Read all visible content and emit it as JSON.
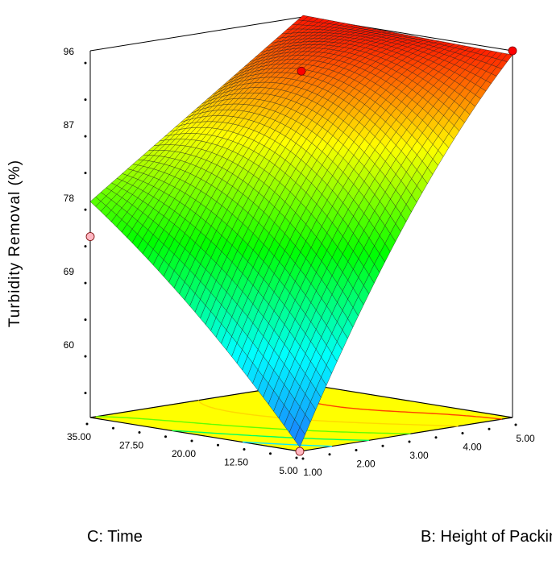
{
  "chart_data": {
    "type": "surface3d",
    "title": "",
    "zlabel": "Turbidity Removal (%)",
    "xlabel": "C: Time",
    "ylabel": "B: Height of Packing",
    "z_ticks": [
      "60",
      "69",
      "78",
      "87",
      "96"
    ],
    "x_ticks": [
      "5.00",
      "12.50",
      "20.00",
      "27.50",
      "35.00"
    ],
    "y_ticks": [
      "1.00",
      "2.00",
      "3.00",
      "4.00",
      "5.00"
    ],
    "xlim": [
      5,
      35
    ],
    "ylim": [
      1,
      5
    ],
    "zlim": [
      51,
      96
    ],
    "surface_corners": [
      {
        "time": 5,
        "height": 1,
        "removal": 51.5
      },
      {
        "time": 35,
        "height": 1,
        "removal": 77.5
      },
      {
        "time": 5,
        "height": 5,
        "removal": 95.5
      },
      {
        "time": 35,
        "height": 5,
        "removal": 96.2
      }
    ],
    "design_points": [
      {
        "time": 5,
        "height": 1,
        "removal": 51.0,
        "above_surface": false
      },
      {
        "time": 35,
        "height": 1,
        "removal": 73.2,
        "above_surface": false
      },
      {
        "time": 5,
        "height": 5,
        "removal": 96.0,
        "above_surface": true
      },
      {
        "time": 20,
        "height": 3,
        "removal": 93.5,
        "above_surface": true
      }
    ],
    "colormap": [
      "#1e64ff",
      "#00ffff",
      "#00ff00",
      "#ffff00",
      "#ff0000"
    ],
    "floor_color": "#ffff00"
  }
}
